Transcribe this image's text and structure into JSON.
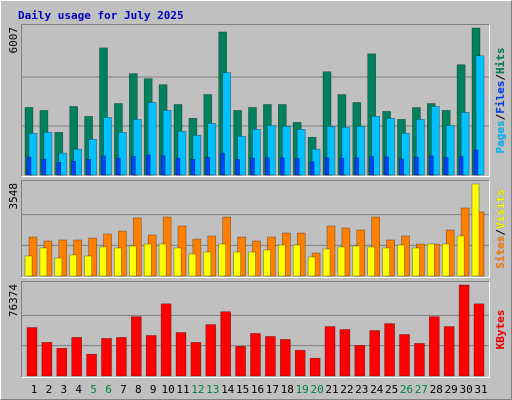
{
  "title": "Daily usage for July 2025",
  "separator": "/",
  "chart_data": [
    {
      "type": "bar",
      "ylim": [
        0,
        6007
      ],
      "series": [
        {
          "name": "Pages",
          "color": "#00c0ff",
          "values": [
            1705,
            1745,
            893,
            1055,
            1461,
            2354,
            1745,
            2273,
            2963,
            2638,
            1786,
            1624,
            2111,
            4181,
            1583,
            1867,
            2029,
            1989,
            1867,
            1055,
            1989,
            1948,
            1989,
            2395,
            2314,
            1705,
            2273,
            2800,
            2029,
            2557,
            4871
          ]
        },
        {
          "name": "Files",
          "color": "#0040ff",
          "values": [
            730,
            650,
            520,
            560,
            640,
            780,
            690,
            760,
            820,
            790,
            680,
            640,
            720,
            900,
            640,
            690,
            710,
            700,
            680,
            540,
            700,
            690,
            700,
            760,
            740,
            660,
            730,
            780,
            710,
            760,
            1020
          ]
        },
        {
          "name": "Hits",
          "color": "#00805c",
          "values": [
            2760,
            2638,
            1745,
            2800,
            2395,
            5195,
            2922,
            4140,
            3937,
            3693,
            2882,
            2314,
            3288,
            5845,
            2638,
            2760,
            2882,
            2882,
            2151,
            1542,
            4221,
            3288,
            2963,
            4952,
            2598,
            2273,
            2760,
            2922,
            2638,
            4505,
            6007
          ]
        }
      ]
    },
    {
      "type": "bar",
      "ylim": [
        0,
        3548
      ],
      "series": [
        {
          "name": "Sites",
          "color": "#ff8000",
          "values": [
            1504,
            1350,
            1388,
            1388,
            1465,
            1620,
            1735,
            2237,
            1581,
            2275,
            1928,
            1427,
            1543,
            2275,
            1504,
            1350,
            1504,
            1658,
            1658,
            887,
            1928,
            1851,
            1774,
            2275,
            1388,
            1543,
            1234,
            1234,
            1774,
            2622,
            2468
          ]
        },
        {
          "name": "Visits",
          "color": "#ffff00",
          "values": [
            771,
            1080,
            694,
            810,
            771,
            1118,
            1080,
            1157,
            1234,
            1234,
            1080,
            848,
            925,
            1234,
            925,
            925,
            1003,
            1196,
            1196,
            733,
            1041,
            1118,
            1157,
            1118,
            1080,
            1196,
            1080,
            1234,
            1234,
            1543,
            3548
          ]
        }
      ]
    },
    {
      "type": "bar",
      "ylim": [
        0,
        76374
      ],
      "categories": [
        "1",
        "2",
        "3",
        "4",
        "5",
        "6",
        "7",
        "8",
        "9",
        "10",
        "11",
        "12",
        "13",
        "14",
        "15",
        "16",
        "17",
        "18",
        "19",
        "20",
        "21",
        "22",
        "23",
        "24",
        "25",
        "26",
        "27",
        "28",
        "29",
        "30",
        "31"
      ],
      "label_colors": [
        "#000000",
        "#000000",
        "#000000",
        "#000000",
        "#008040",
        "#008040",
        "#000000",
        "#000000",
        "#000000",
        "#000000",
        "#000000",
        "#008040",
        "#008040",
        "#000000",
        "#000000",
        "#000000",
        "#000000",
        "#000000",
        "#008040",
        "#008040",
        "#000000",
        "#000000",
        "#000000",
        "#000000",
        "#000000",
        "#008040",
        "#008040",
        "#000000",
        "#000000",
        "#000000",
        "#000000"
      ],
      "series": [
        {
          "name": "KBytes",
          "color": "#ff0000",
          "values": [
            40677,
            28225,
            23244,
            32376,
            18263,
            31546,
            32376,
            49810,
            34037,
            60602,
            36527,
            28225,
            43168,
            53961,
            24904,
            35697,
            33207,
            30716,
            21584,
            14943,
            41507,
            39016,
            25734,
            38186,
            43998,
            34867,
            27395,
            49810,
            41507,
            76374,
            60602
          ]
        }
      ]
    }
  ]
}
